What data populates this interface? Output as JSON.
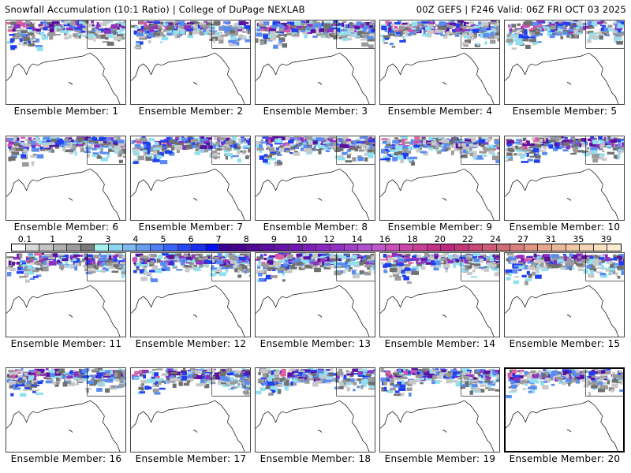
{
  "header": {
    "title_left": "Snowfall Accumulation (10:1 Ratio) | College of DuPage NEXLAB",
    "title_right": "00Z GEFS | F246 Valid: 06Z FRI OCT 03 2025"
  },
  "members": [
    {
      "label": "Ensemble Member: 1"
    },
    {
      "label": "Ensemble Member: 2"
    },
    {
      "label": "Ensemble Member: 3"
    },
    {
      "label": "Ensemble Member: 4"
    },
    {
      "label": "Ensemble Member: 5"
    },
    {
      "label": "Ensemble Member: 6"
    },
    {
      "label": "Ensemble Member: 7"
    },
    {
      "label": "Ensemble Member: 8"
    },
    {
      "label": "Ensemble Member: 9"
    },
    {
      "label": "Ensemble Member: 10"
    },
    {
      "label": "Ensemble Member: 11"
    },
    {
      "label": "Ensemble Member: 12"
    },
    {
      "label": "Ensemble Member: 13"
    },
    {
      "label": "Ensemble Member: 14"
    },
    {
      "label": "Ensemble Member: 15"
    },
    {
      "label": "Ensemble Member: 16"
    },
    {
      "label": "Ensemble Member: 17"
    },
    {
      "label": "Ensemble Member: 18"
    },
    {
      "label": "Ensemble Member: 19"
    },
    {
      "label": "Ensemble Member: 20"
    }
  ],
  "selected_member": 20,
  "colorbar": {
    "labels": [
      "0.1",
      "1",
      "2",
      "3",
      "4",
      "5",
      "6",
      "7",
      "8",
      "9",
      "10",
      "12",
      "14",
      "16",
      "18",
      "20",
      "22",
      "24",
      "27",
      "31",
      "35",
      "39"
    ],
    "colors": [
      "#ffffff",
      "#d9d9d9",
      "#c4c4c4",
      "#b0b0b0",
      "#9c9c9c",
      "#7a7a7a",
      "#a8f0f0",
      "#90d8f0",
      "#80b8f0",
      "#6a9cf0",
      "#5080f5",
      "#3a64f5",
      "#2848f5",
      "#1a30f0",
      "#0010f0",
      "#3a0090",
      "#44008c",
      "#500898",
      "#5a10a0",
      "#6414a8",
      "#7018b0",
      "#7c20b8",
      "#8828c0",
      "#9430c4",
      "#a040c8",
      "#b050cc",
      "#c058c8",
      "#c850b8",
      "#cc48a8",
      "#c84098",
      "#c43088",
      "#c02880",
      "#c03878",
      "#c84878",
      "#cc5c78",
      "#d06c78",
      "#d8807c",
      "#e09484",
      "#e8a890",
      "#ecb89c",
      "#f0c8a8",
      "#f4d4b4",
      "#f8e0c0",
      "#fcecd0"
    ]
  },
  "snow_colors": [
    "#c8c8c8",
    "#9a9a9a",
    "#707070",
    "#90e0f0",
    "#5a8cf0",
    "#2040f0",
    "#5a10a0",
    "#9030c0",
    "#d050b0",
    "#e060a0"
  ]
}
